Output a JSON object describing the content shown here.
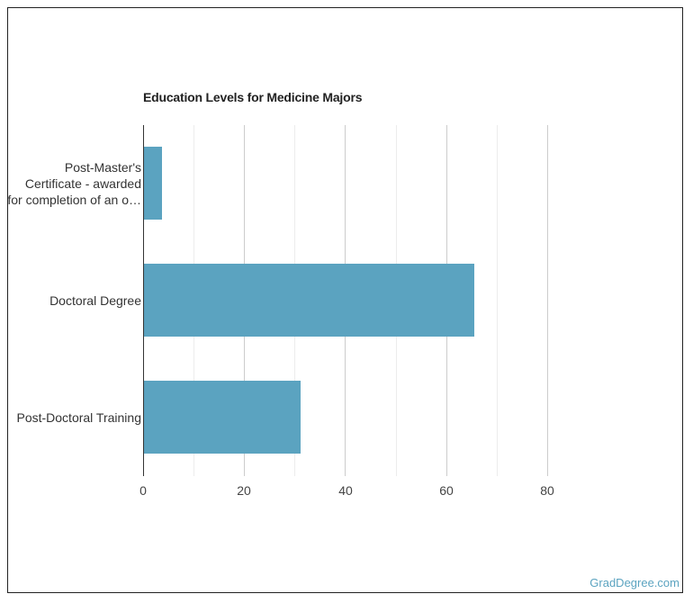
{
  "brand": {
    "label": "GradDegree.com",
    "color": "#5ba3c0"
  },
  "chart_data": {
    "type": "bar",
    "orientation": "horizontal",
    "title": "Education Levels for Medicine Majors",
    "xlabel": "",
    "ylabel": "",
    "categories": [
      "Post-Master's Certificate - awarded for completion of an o…",
      "Doctoral Degree",
      "Post-Doctoral Training"
    ],
    "category_label_lines": [
      [
        "Post-Master's",
        "Certificate - awarded",
        "for completion of an o…"
      ],
      [
        "Doctoral Degree"
      ],
      [
        "Post-Doctoral Training"
      ]
    ],
    "values": [
      3.6,
      65.4,
      31.0
    ],
    "bar_color": "#5ba3c0",
    "xlim": [
      0,
      80
    ],
    "x_ticks": [
      "0",
      "20",
      "40",
      "60",
      "80"
    ],
    "grid": true,
    "legend": null
  }
}
